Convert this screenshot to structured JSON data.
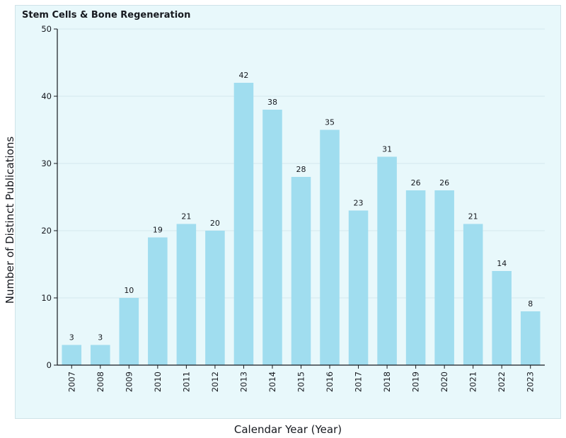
{
  "chart_data": {
    "type": "bar",
    "title": "Stem Cells & Bone Regeneration",
    "xlabel": "Calendar Year (Year)",
    "ylabel": "Number of Distinct Publications",
    "categories": [
      "2007",
      "2008",
      "2009",
      "2010",
      "2011",
      "2012",
      "2013",
      "2014",
      "2015",
      "2016",
      "2017",
      "2018",
      "2019",
      "2020",
      "2021",
      "2022",
      "2023"
    ],
    "values": [
      3,
      3,
      10,
      19,
      21,
      20,
      42,
      38,
      28,
      35,
      23,
      31,
      26,
      26,
      21,
      14,
      8
    ],
    "ylim": [
      0,
      50
    ],
    "yticks": [
      0,
      10,
      20,
      30,
      40,
      50
    ],
    "grid": true,
    "data_labels": true,
    "colors": {
      "bar": "#a0ddef",
      "panel": "#e8f8fb",
      "grid": "#d5e9ee",
      "axis": "#16191f"
    }
  }
}
